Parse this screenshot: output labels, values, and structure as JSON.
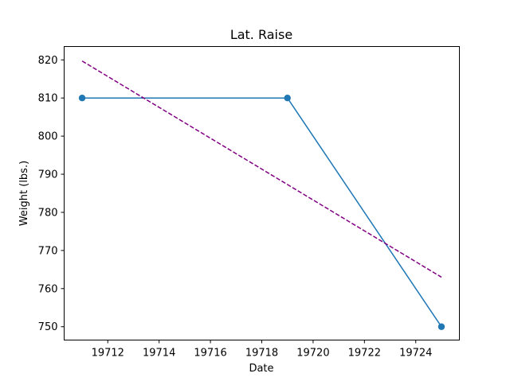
{
  "chart_data": {
    "type": "line",
    "title": "Lat. Raise",
    "xlabel": "Date",
    "ylabel": "Weight (lbs.)",
    "xlim": [
      19710.3,
      19725.7
    ],
    "ylim": [
      746.5,
      823.5
    ],
    "x_ticks": [
      19712,
      19714,
      19716,
      19718,
      19720,
      19722,
      19724
    ],
    "y_ticks": [
      750,
      760,
      770,
      780,
      790,
      800,
      810,
      820
    ],
    "grid": false,
    "legend": "none",
    "series": [
      {
        "style": "solid-line-with-circle-markers",
        "color": "#1f77b4",
        "x": [
          19711,
          19719,
          19725
        ],
        "y": [
          810,
          810,
          750
        ]
      },
      {
        "style": "dashed-trend-line",
        "color": "#800080",
        "x": [
          19711,
          19725
        ],
        "y": [
          819.7,
          763.0
        ]
      }
    ]
  }
}
